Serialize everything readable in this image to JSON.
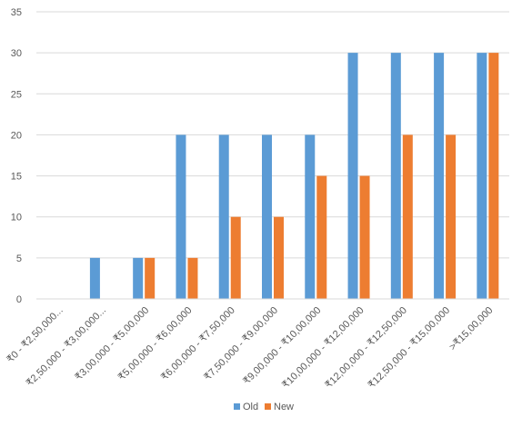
{
  "chart_data": {
    "type": "bar",
    "categories": [
      "₹0 - ₹2,50,000...",
      "₹2,50,000 - ₹3,00,000...",
      "₹3,00,000 - ₹5,00,000",
      "₹5,00,000 - ₹6,00,000",
      "₹6,00,000 - ₹7,50,000",
      "₹7,50,000 - ₹9,00,000",
      "₹9,00,000 - ₹10,00,000",
      "₹10,00,000 - ₹12,00,000",
      "₹12,00,000 - ₹12,50,000",
      "₹12,50,000 - ₹15,00,000",
      ">₹15,00,000"
    ],
    "series": [
      {
        "name": "Old",
        "color": "#5B9BD5",
        "values": [
          0,
          5,
          5,
          20,
          20,
          20,
          20,
          30,
          30,
          30,
          30
        ]
      },
      {
        "name": "New",
        "color": "#ED7D31",
        "values": [
          0,
          0,
          5,
          5,
          10,
          10,
          15,
          15,
          20,
          20,
          30
        ]
      }
    ],
    "ylim": [
      0,
      35
    ],
    "yticks": [
      "0",
      "5",
      "10",
      "15",
      "20",
      "25",
      "30",
      "35"
    ],
    "ytick_values": [
      0,
      5,
      10,
      15,
      20,
      25,
      30,
      35
    ],
    "grid": true,
    "legend": "bottom"
  }
}
